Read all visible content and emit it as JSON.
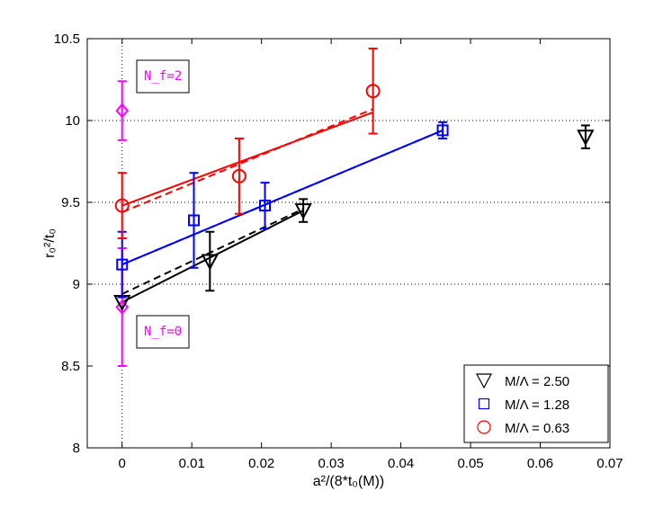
{
  "chart_data": {
    "type": "scatter",
    "xlabel": "a²/(8*t₀(M))",
    "ylabel": "r₀²/t₀",
    "xlim": [
      -0.005,
      0.07
    ],
    "ylim": [
      8,
      10.5
    ],
    "x_ticks": [
      "0",
      "0.01",
      "0.02",
      "0.03",
      "0.04",
      "0.05",
      "0.06",
      "0.07"
    ],
    "y_ticks": [
      "8",
      "8.5",
      "9",
      "9.5",
      "10",
      "10.5"
    ],
    "grid": "dotted at y = 9, 9.5, 10 and x = 0",
    "legend_position": "bottom-right",
    "series": [
      {
        "name": "M/Λ = 2.50",
        "marker": "triangle-down",
        "color": "#000000",
        "points": [
          {
            "x": 0.0,
            "y": 8.89,
            "err": 0.0
          },
          {
            "x": 0.0126,
            "y": 9.14,
            "err": 0.18
          },
          {
            "x": 0.026,
            "y": 9.45,
            "err": 0.07
          },
          {
            "x": 0.0665,
            "y": 9.9,
            "err": 0.07
          }
        ],
        "fit_solid": [
          [
            0.0,
            8.89
          ],
          [
            0.026,
            9.45
          ]
        ],
        "fit_dashed": [
          [
            0.0,
            8.94
          ],
          [
            0.026,
            9.46
          ]
        ]
      },
      {
        "name": "M/Λ = 1.28",
        "marker": "square",
        "color": "#0000ff",
        "points": [
          {
            "x": 0.0,
            "y": 9.12,
            "err": 0.2
          },
          {
            "x": 0.0103,
            "y": 9.39,
            "err": 0.29
          },
          {
            "x": 0.0205,
            "y": 9.48,
            "err": 0.14
          },
          {
            "x": 0.046,
            "y": 9.94,
            "err": 0.05
          }
        ],
        "fit_solid": [
          [
            0.0,
            9.12
          ],
          [
            0.046,
            9.94
          ]
        ],
        "fit_dashed": [
          [
            0.0,
            9.12
          ],
          [
            0.046,
            9.94
          ]
        ]
      },
      {
        "name": "M/Λ = 0.63",
        "marker": "circle",
        "color": "#ff0000",
        "points": [
          {
            "x": 0.0,
            "y": 9.48,
            "err": 0.2
          },
          {
            "x": 0.0168,
            "y": 9.66,
            "err": 0.23
          },
          {
            "x": 0.036,
            "y": 10.18,
            "err": 0.26
          }
        ],
        "fit_solid": [
          [
            0.0,
            9.48
          ],
          [
            0.036,
            10.05
          ]
        ],
        "fit_dashed": [
          [
            0.0,
            9.44
          ],
          [
            0.036,
            10.07
          ]
        ]
      }
    ],
    "reference_points": [
      {
        "x": 0.0,
        "y": 10.06,
        "err": 0.18,
        "color": "#ff00ff",
        "marker": "diamond"
      },
      {
        "x": 0.0,
        "y": 8.86,
        "err": 0.36,
        "color": "#ff00ff",
        "marker": "diamond"
      }
    ],
    "annotations": [
      {
        "text": "N_f=2",
        "color": "#ff00ff"
      },
      {
        "text": "N_f=0",
        "color": "#ff00ff"
      }
    ]
  }
}
